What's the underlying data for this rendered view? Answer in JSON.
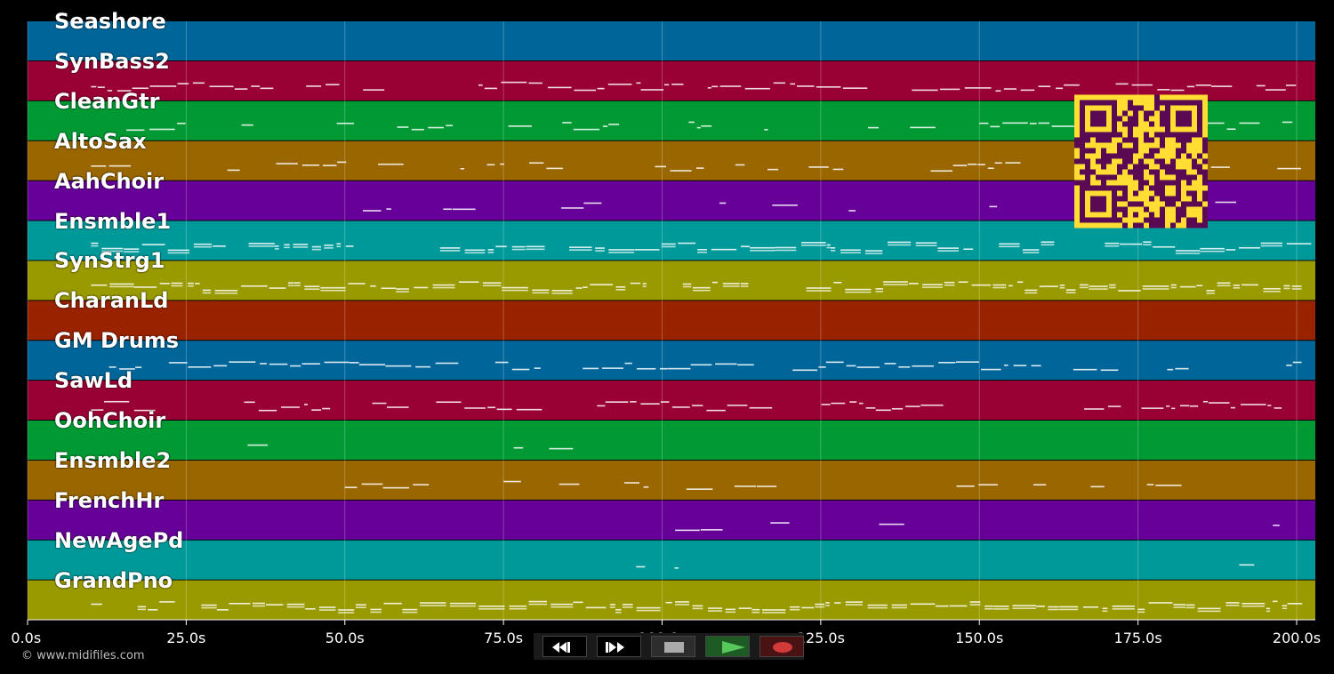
{
  "app": {
    "copyright": "© www.midifiles.com"
  },
  "timeline": {
    "ticks": [
      "0.0s",
      "25.0s",
      "50.0s",
      "75.0s",
      "100.0s",
      "125.0s",
      "150.0s",
      "175.0s",
      "200.0s"
    ],
    "tick_values": [
      0,
      25,
      50,
      75,
      100,
      125,
      150,
      175,
      200
    ],
    "duration_max": 203
  },
  "tracks": [
    {
      "name": "Seashore",
      "color": "#006699"
    },
    {
      "name": "SynBass2",
      "color": "#990033"
    },
    {
      "name": "CleanGtr",
      "color": "#009933"
    },
    {
      "name": "AltoSax",
      "color": "#996600"
    },
    {
      "name": "AahChoir",
      "color": "#660099"
    },
    {
      "name": "Ensmble1",
      "color": "#009999"
    },
    {
      "name": "SynStrg1",
      "color": "#999900"
    },
    {
      "name": "CharanLd",
      "color": "#992200"
    },
    {
      "name": "GM Drums",
      "color": "#006699"
    },
    {
      "name": "SawLd",
      "color": "#990033"
    },
    {
      "name": "OohChoir",
      "color": "#009933"
    },
    {
      "name": "Ensmble2",
      "color": "#996600"
    },
    {
      "name": "FrenchHr",
      "color": "#660099"
    },
    {
      "name": "NewAgePd",
      "color": "#009999"
    },
    {
      "name": "GrandPno",
      "color": "#999900"
    }
  ],
  "transport": {
    "buttons": [
      {
        "name": "rewind-button",
        "icon": "rewind-icon"
      },
      {
        "name": "fast-forward-button",
        "icon": "fast-forward-icon"
      },
      {
        "name": "stop-button",
        "icon": "stop-icon"
      },
      {
        "name": "play-button",
        "icon": "play-icon"
      },
      {
        "name": "record-button",
        "icon": "record-icon"
      }
    ]
  },
  "qr": {
    "color": "#5a0a52",
    "background": "#ffdd33"
  }
}
